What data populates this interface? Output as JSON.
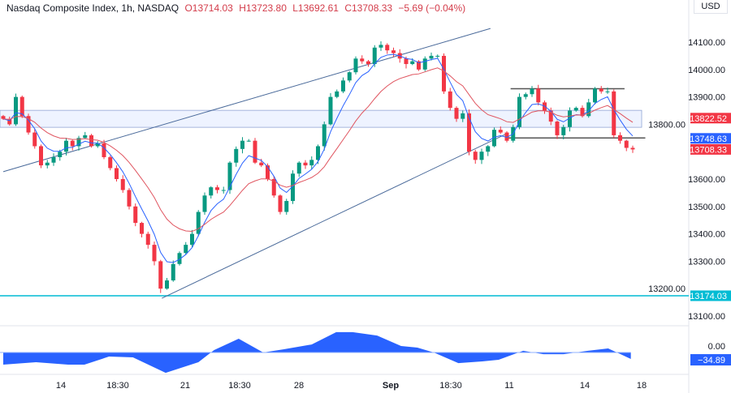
{
  "header": {
    "symbol": "Nasdaq Composite Index, 1h, NASDAQ",
    "open": "O13714.03",
    "high": "H13723.80",
    "low": "L13692.61",
    "close": "C13708.33",
    "change": "−5.69 (−0.04%)",
    "currency": "USD"
  },
  "colors": {
    "up": "#089981",
    "down": "#f23645",
    "ma_fast": "#2962ff",
    "ma_slow": "#e05560",
    "support": "#00bcd4",
    "osc": "#2962ff"
  },
  "chart_data": {
    "type": "candlestick",
    "y_ticks": [
      "14100.00",
      "14000.00",
      "13900.00",
      "13800.00",
      "13600.00",
      "13500.00",
      "13400.00",
      "13300.00",
      "13200.00",
      "13100.00"
    ],
    "x_ticks": [
      "14",
      "18:30",
      "21",
      "18:30",
      "28",
      "Sep",
      "18:30",
      "11",
      "14",
      "18"
    ],
    "price_tags": [
      {
        "label": "13822.52",
        "value": 13822.52,
        "color": "#f23645"
      },
      {
        "label": "13748.63",
        "value": 13748.63,
        "color": "#2962ff"
      },
      {
        "label": "13708.33",
        "value": 13708.33,
        "color": "#f23645"
      },
      {
        "label": "13174.03",
        "value": 13174.03,
        "color": "#00bcd4"
      }
    ],
    "closes": [
      13820,
      13800,
      13900,
      13830,
      13770,
      13720,
      13650,
      13660,
      13680,
      13700,
      13740,
      13720,
      13750,
      13760,
      13720,
      13730,
      13680,
      13640,
      13600,
      13560,
      13500,
      13440,
      13400,
      13360,
      13300,
      13200,
      13230,
      13290,
      13330,
      13360,
      13400,
      13480,
      13540,
      13570,
      13560,
      13560,
      13660,
      13710,
      13740,
      13740,
      13660,
      13650,
      13600,
      13540,
      13480,
      13520,
      13620,
      13660,
      13650,
      13670,
      13720,
      13800,
      13900,
      13920,
      13960,
      13990,
      14040,
      14030,
      14020,
      14080,
      14090,
      14070,
      14060,
      14040,
      14020,
      14030,
      14000,
      14040,
      14050,
      14050,
      13920,
      13860,
      13820,
      13840,
      13700,
      13670,
      13700,
      13720,
      13780,
      13770,
      13740,
      13790,
      13900,
      13910,
      13930,
      13880,
      13850,
      13810,
      13760,
      13790,
      13850,
      13860,
      13830,
      13880,
      13930,
      13920,
      13920,
      13760,
      13740,
      13714,
      13708.33
    ],
    "support_level": 13174.03,
    "zone": [
      13789,
      13851
    ],
    "upper_channel": [
      [
        0,
        13627
      ],
      [
        77.4,
        14150
      ]
    ],
    "lower_channel": [
      [
        25.2,
        13165
      ],
      [
        80,
        13766
      ]
    ],
    "range_top": {
      "from": 80.6,
      "to": 98.7,
      "price": 13930
    },
    "range_bottom": {
      "from": 80,
      "to": 102,
      "price": 13750
    },
    "oscillator": {
      "zero_label": "0.00",
      "current_label": "−34.89",
      "points": [
        [
          0,
          -65
        ],
        [
          5.2,
          -52
        ],
        [
          10.3,
          -65
        ],
        [
          12.9,
          -65
        ],
        [
          16.8,
          -22
        ],
        [
          20.6,
          -26
        ],
        [
          25.8,
          -109
        ],
        [
          31,
          -52
        ],
        [
          33.5,
          13
        ],
        [
          37.4,
          74
        ],
        [
          41.3,
          0
        ],
        [
          44.5,
          17
        ],
        [
          49,
          43
        ],
        [
          52.9,
          109
        ],
        [
          55.5,
          109
        ],
        [
          59.4,
          91
        ],
        [
          63.2,
          35
        ],
        [
          65.8,
          26
        ],
        [
          68.4,
          0
        ],
        [
          72.3,
          -57
        ],
        [
          76.1,
          -48
        ],
        [
          78.7,
          -39
        ],
        [
          82.6,
          9
        ],
        [
          85.8,
          -9
        ],
        [
          89,
          -9
        ],
        [
          92.9,
          9
        ],
        [
          96.1,
          22
        ],
        [
          99.7,
          -35
        ]
      ]
    }
  }
}
